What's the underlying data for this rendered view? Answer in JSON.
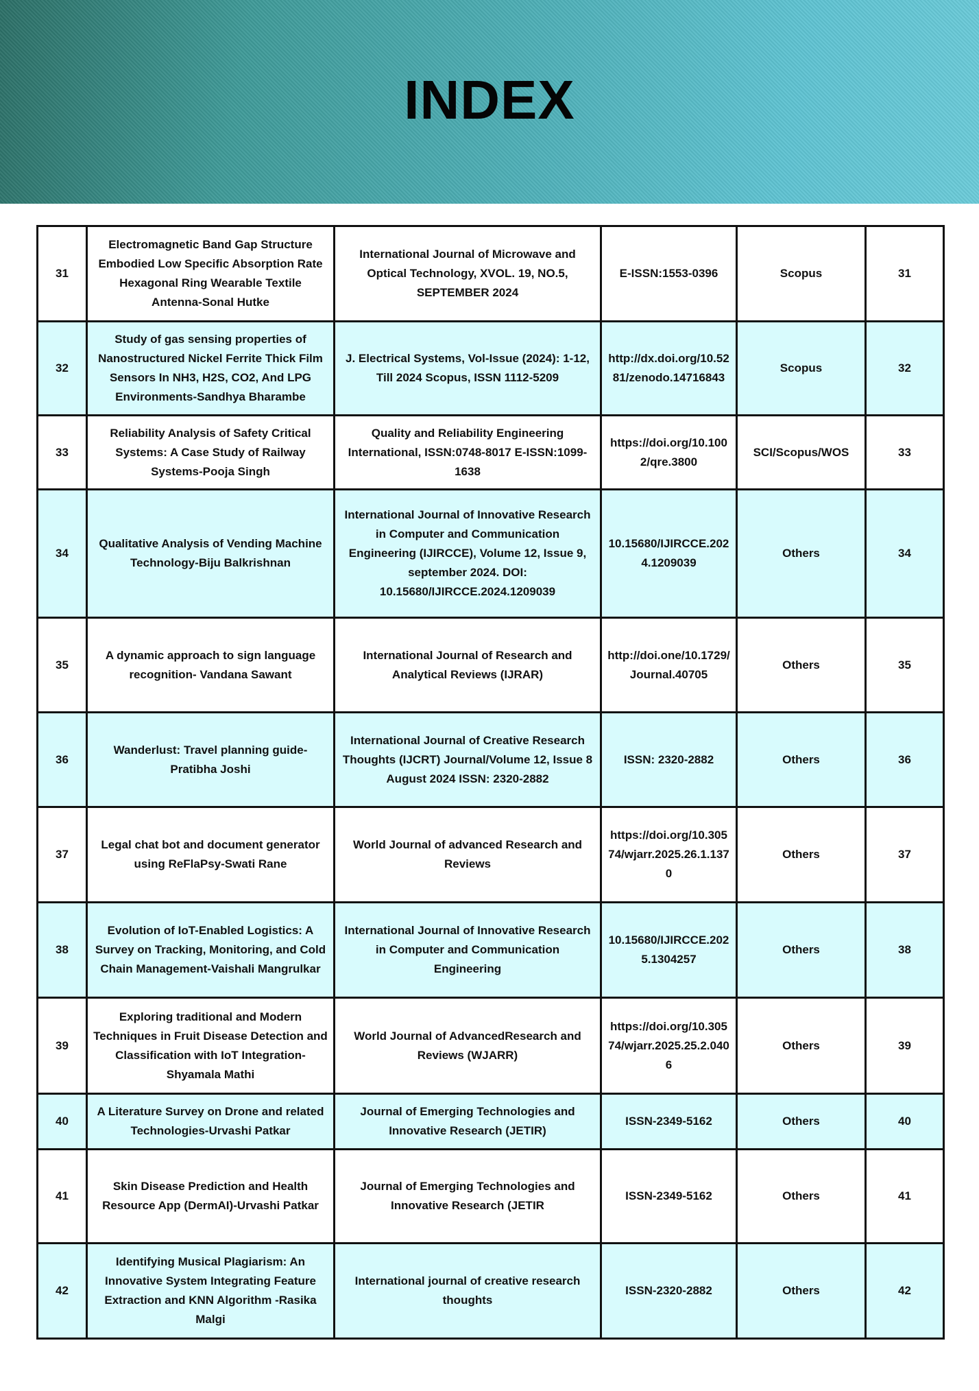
{
  "header": {
    "title": "INDEX"
  },
  "colors": {
    "row_highlight": "#d8fbfd",
    "banner_dark": "#2c6f66",
    "banner_light": "#6bcbd9"
  },
  "rows": [
    {
      "no": "31",
      "title": "Electromagnetic Band Gap Structure Embodied Low Specific Absorption Rate Hexagonal Ring Wearable Textile Antenna-Sonal Hutke",
      "journal": "International Journal of Microwave and Optical Technology, XVOL. 19, NO.5, SEPTEMBER 2024",
      "id": "E-ISSN:1553-0396",
      "index": "Scopus",
      "page": "31"
    },
    {
      "no": "32",
      "title": "Study of gas sensing properties of Nanostructured Nickel Ferrite Thick Film Sensors In NH3, H2S, CO2, And LPG Environments-Sandhya Bharambe",
      "journal": "J. Electrical Systems, Vol-Issue (2024): 1-12, Till 2024 Scopus, ISSN 1112-5209",
      "id": "http://dx.doi.org/10.5281/zenodo.14716843",
      "index": "Scopus",
      "page": "32"
    },
    {
      "no": "33",
      "title": "Reliability Analysis of Safety Critical Systems: A Case Study of Railway Systems-Pooja Singh",
      "journal": "Quality and Reliability Engineering International, ISSN:0748-8017 E-ISSN:1099-1638",
      "id": "https://doi.org/10.1002/qre.3800",
      "index": "SCI/Scopus/WOS",
      "page": "33"
    },
    {
      "no": "34",
      "title": "Qualitative Analysis of Vending Machine Technology-Biju Balkrishnan",
      "journal": "International Journal of Innovative Research in Computer and Communication Engineering (IJIRCCE), Volume 12, Issue 9, september 2024. DOI: 10.15680/IJIRCCE.2024.1209039",
      "id": "10.15680/IJIRCCE.2024.1209039",
      "index": "Others",
      "page": "34"
    },
    {
      "no": "35",
      "title": "A dynamic approach to sign language recognition- Vandana Sawant",
      "journal": "International Journal of Research and Analytical Reviews (IJRAR)",
      "id": "http://doi.one/10.1729/Journal.40705",
      "index": "Others",
      "page": "35"
    },
    {
      "no": "36",
      "title": "Wanderlust: Travel planning guide- Pratibha Joshi",
      "journal": "International Journal of Creative Research Thoughts (IJCRT) Journal/Volume 12, Issue 8 August 2024 ISSN: 2320-2882",
      "id": "ISSN: 2320-2882",
      "index": "Others",
      "page": "36"
    },
    {
      "no": "37",
      "title": "Legal chat bot and document generator using ReFlaPsy-Swati Rane",
      "journal": "World Journal of advanced Research and Reviews",
      "id": "https://doi.org/10.30574/wjarr.2025.26.1.1370",
      "index": "Others",
      "page": "37"
    },
    {
      "no": "38",
      "title": "Evolution of IoT-Enabled Logistics: A Survey on Tracking, Monitoring, and Cold Chain Management-Vaishali Mangrulkar",
      "journal": "International Journal of Innovative Research in Computer and Communication Engineering",
      "id": "10.15680/IJIRCCE.2025.1304257",
      "index": "Others",
      "page": "38"
    },
    {
      "no": "39",
      "title": "Exploring traditional and Modern Techniques in Fruit Disease Detection and Classification with IoT Integration-Shyamala Mathi",
      "journal": "World Journal of AdvancedResearch and Reviews (WJARR)",
      "id": "https://doi.org/10.30574/wjarr.2025.25.2.0406",
      "index": "Others",
      "page": "39"
    },
    {
      "no": "40",
      "title": "A Literature Survey on Drone and related Technologies-Urvashi Patkar",
      "journal": "Journal of Emerging Technologies and Innovative Research (JETIR)",
      "id": "ISSN-2349-5162",
      "index": "Others",
      "page": "40"
    },
    {
      "no": "41",
      "title": "Skin Disease Prediction and Health Resource App (DermAI)-Urvashi Patkar",
      "journal": "Journal of Emerging Technologies and Innovative Research (JETIR",
      "id": "ISSN-2349-5162",
      "index": "Others",
      "page": "41"
    },
    {
      "no": "42",
      "title": "Identifying Musical Plagiarism: An Innovative System Integrating Feature Extraction and KNN Algorithm -Rasika Malgi",
      "journal": "International journal of creative research thoughts",
      "id": "ISSN-2320-2882",
      "index": "Others",
      "page": "42"
    }
  ]
}
